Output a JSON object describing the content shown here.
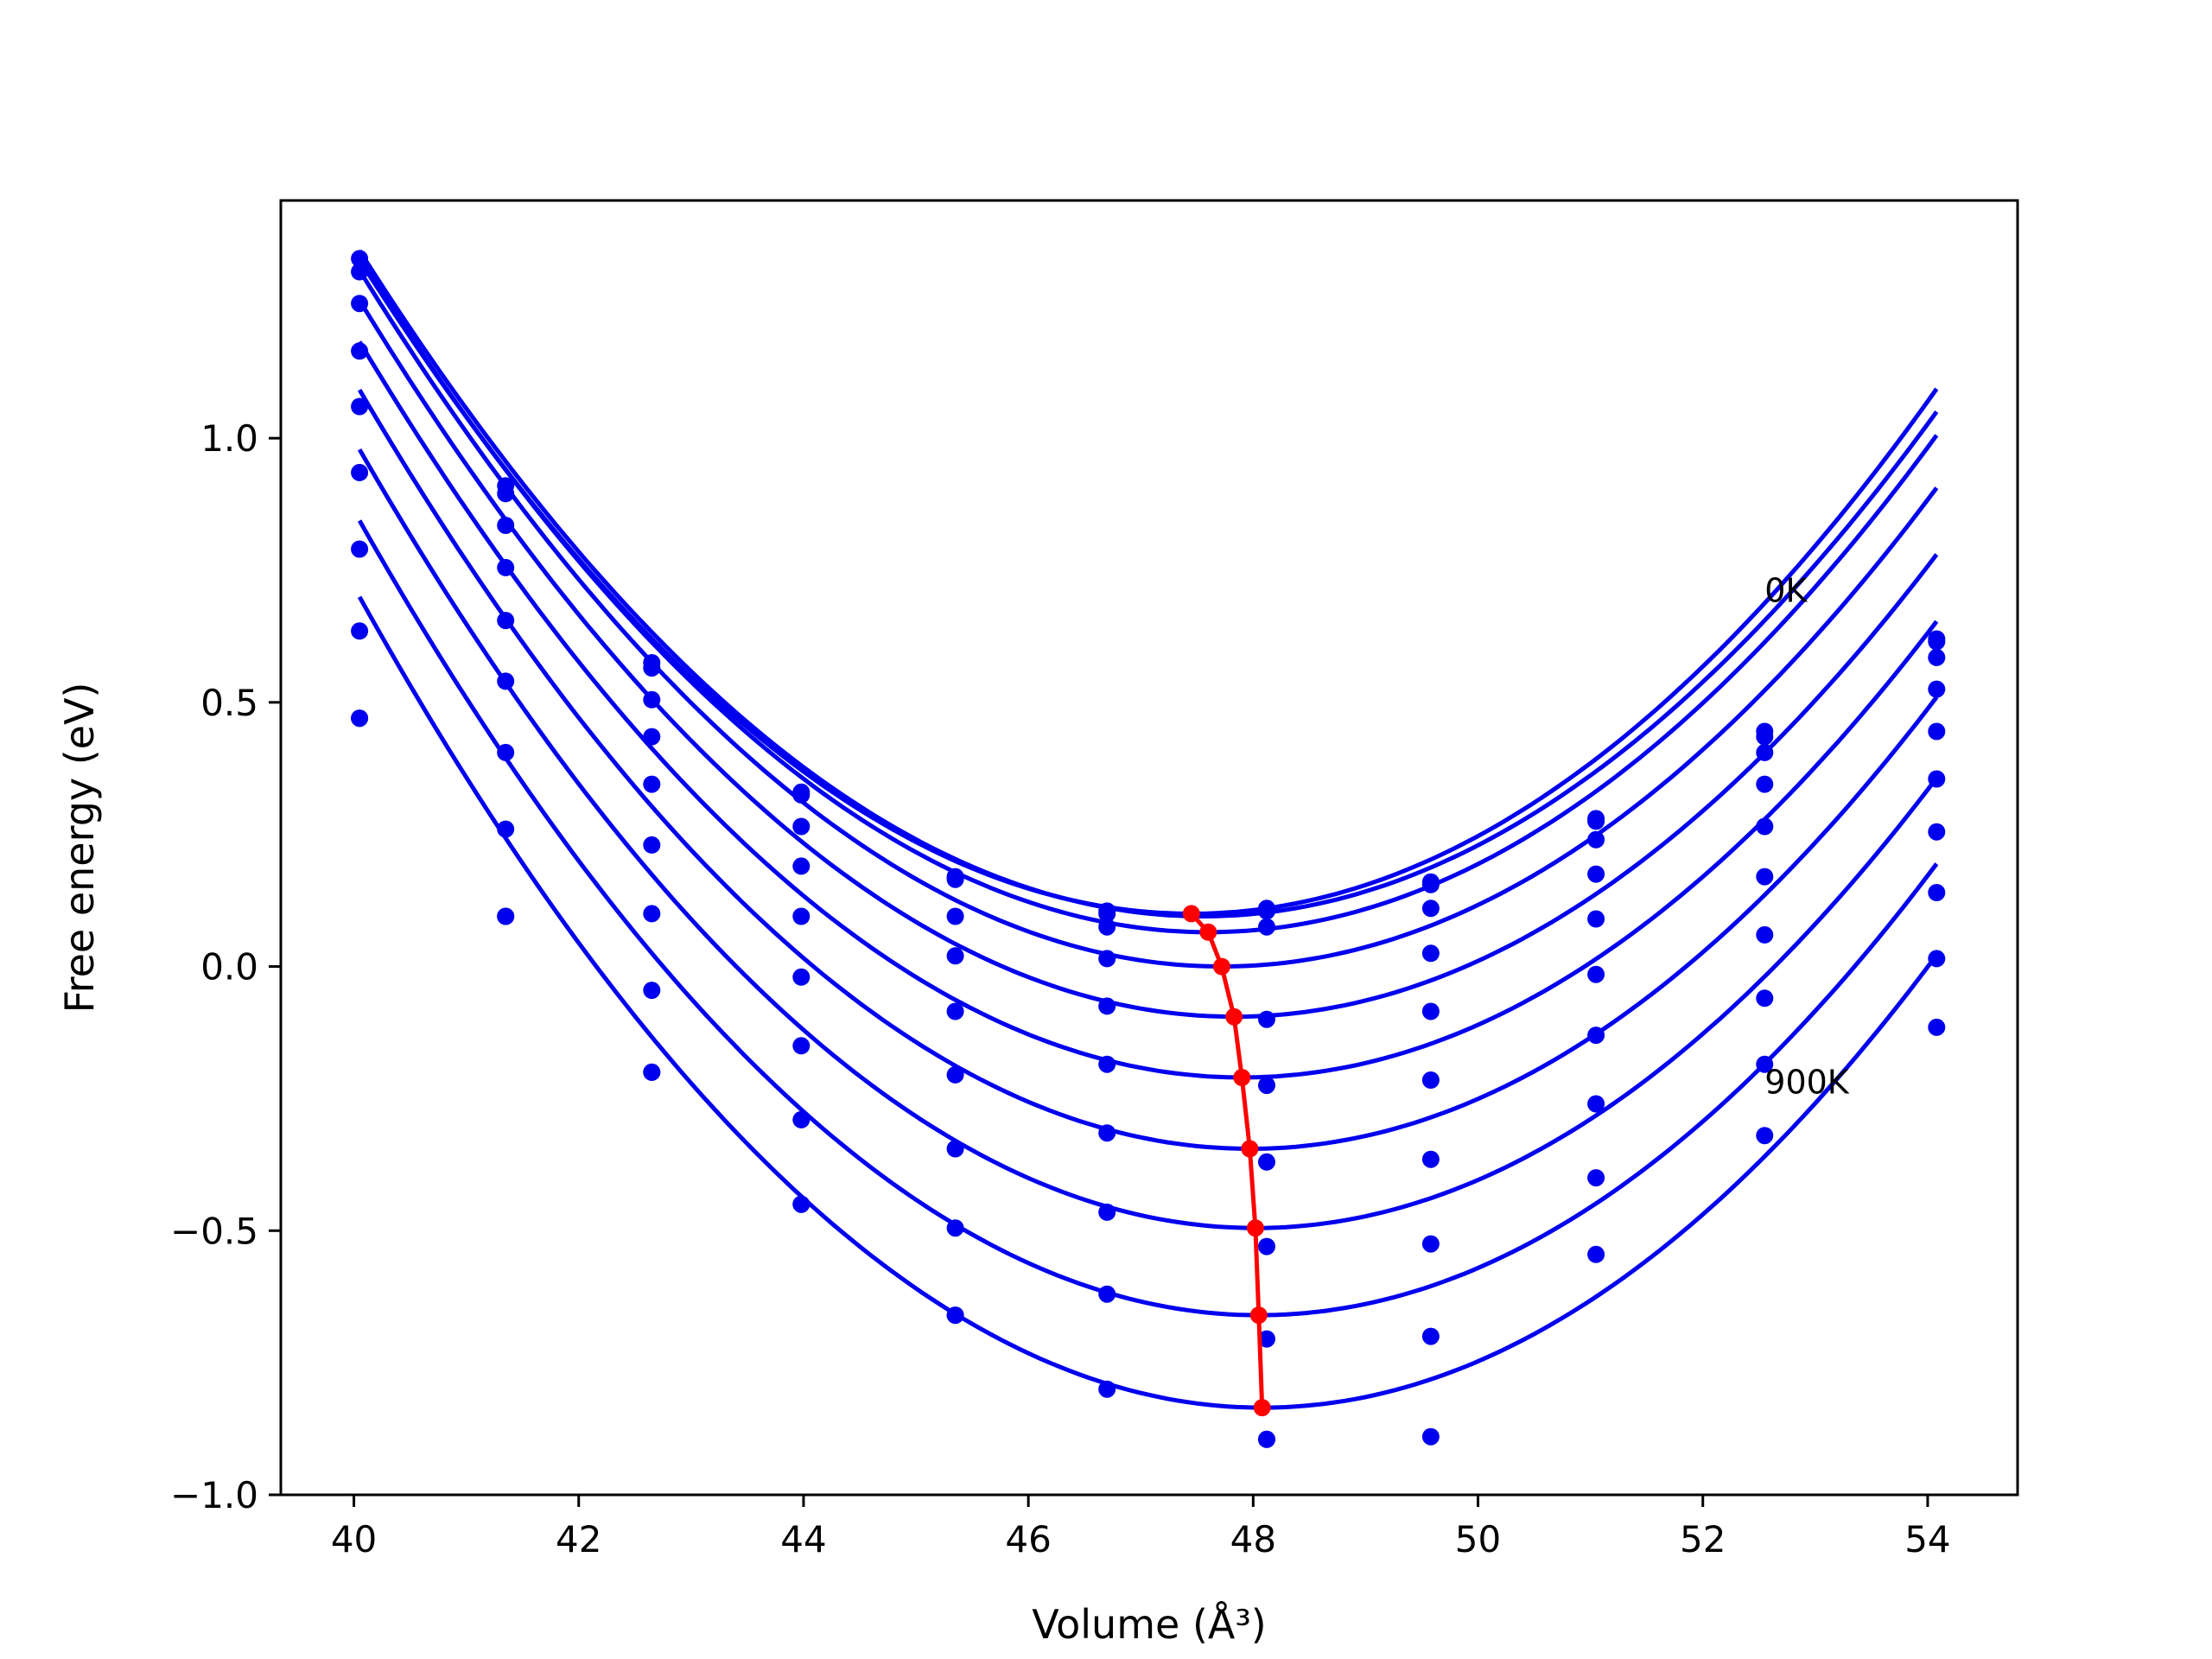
{
  "chart_data": {
    "type": "scatter",
    "title": "",
    "xlabel": "Volume (Å³)",
    "ylabel": "Free energy (eV)",
    "xlim": [
      39.35,
      54.8
    ],
    "ylim": [
      -1.0,
      1.45
    ],
    "xticks": [
      40,
      42,
      44,
      46,
      48,
      50,
      52,
      54
    ],
    "yticks": [
      -1.0,
      -0.5,
      0.0,
      0.5,
      1.0
    ],
    "xtick_labels": [
      "40",
      "42",
      "44",
      "46",
      "48",
      "50",
      "52",
      "54"
    ],
    "ytick_labels": [
      "−1.0",
      "−0.5",
      "0.0",
      "0.5",
      "1.0"
    ],
    "grid": false,
    "legend": "none",
    "annotations": [
      {
        "text": "0K",
        "x": 52.55,
        "y": 0.69
      },
      {
        "text": "900K",
        "x": 52.55,
        "y": -0.24
      }
    ],
    "colors": {
      "series": "#0000ee",
      "minimum_path": "#ff0000",
      "axes": "#000000"
    },
    "x": [
      40.05,
      41.35,
      42.65,
      43.98,
      45.35,
      46.7,
      48.12,
      49.58,
      51.05,
      52.55,
      54.08
    ],
    "series": [
      {
        "values": [
          1.34,
          0.91,
          0.575,
          0.33,
          0.17,
          0.105,
          0.11,
          0.16,
          0.28,
          0.445,
          0.62
        ]
      },
      {
        "values": [
          1.315,
          0.895,
          0.565,
          0.325,
          0.165,
          0.1,
          0.105,
          0.155,
          0.275,
          0.435,
          0.615
        ]
      },
      {
        "values": [
          1.255,
          0.835,
          0.505,
          0.265,
          0.095,
          0.075,
          0.075,
          0.11,
          0.24,
          0.405,
          0.585
        ]
      },
      {
        "values": [
          1.165,
          0.755,
          0.435,
          0.19,
          0.02,
          0.015,
          -0.1,
          0.025,
          0.175,
          0.345,
          0.525
        ]
      },
      {
        "values": [
          1.06,
          0.655,
          0.345,
          0.095,
          -0.085,
          -0.075,
          -0.225,
          -0.085,
          0.09,
          0.265,
          0.445
        ]
      },
      {
        "values": [
          0.935,
          0.54,
          0.23,
          -0.02,
          -0.205,
          -0.185,
          -0.37,
          -0.215,
          -0.015,
          0.17,
          0.355
        ]
      },
      {
        "values": [
          0.79,
          0.405,
          0.1,
          -0.15,
          -0.345,
          -0.315,
          -0.53,
          -0.365,
          -0.13,
          0.06,
          0.255
        ]
      },
      {
        "values": [
          0.635,
          0.26,
          -0.045,
          -0.29,
          -0.495,
          -0.465,
          -0.705,
          -0.525,
          -0.26,
          -0.06,
          0.14
        ]
      },
      {
        "values": [
          0.47,
          0.095,
          -0.2,
          -0.45,
          -0.66,
          -0.62,
          -0.895,
          -0.7,
          -0.4,
          -0.185,
          0.015
        ]
      },
      {
        "values": [
          0.47,
          0.095,
          -0.2,
          -0.45,
          -0.66,
          -0.8,
          -0.895,
          -0.89,
          -0.545,
          -0.32,
          -0.115
        ]
      }
    ],
    "fit_curves": [
      {
        "x_min": 40.05,
        "x_max": 54.08,
        "v0": 47.45,
        "e0": 0.1,
        "curvature": 0.0226
      },
      {
        "x_min": 40.05,
        "x_max": 54.08,
        "v0": 47.55,
        "e0": 0.095,
        "curvature": 0.0224
      },
      {
        "x_min": 40.05,
        "x_max": 54.08,
        "v0": 47.6,
        "e0": 0.065,
        "curvature": 0.0224
      },
      {
        "x_min": 40.05,
        "x_max": 54.08,
        "v0": 47.72,
        "e0": 0.0,
        "curvature": 0.0224
      },
      {
        "x_min": 40.05,
        "x_max": 54.08,
        "v0": 47.83,
        "e0": -0.095,
        "curvature": 0.0224
      },
      {
        "x_min": 40.05,
        "x_max": 54.08,
        "v0": 47.9,
        "e0": -0.21,
        "curvature": 0.0226
      },
      {
        "x_min": 40.05,
        "x_max": 54.08,
        "v0": 47.97,
        "e0": -0.345,
        "curvature": 0.0229
      },
      {
        "x_min": 40.05,
        "x_max": 54.08,
        "v0": 48.02,
        "e0": -0.495,
        "curvature": 0.0232
      },
      {
        "x_min": 40.05,
        "x_max": 54.08,
        "v0": 48.05,
        "e0": -0.66,
        "curvature": 0.0235
      },
      {
        "x_min": 40.05,
        "x_max": 54.08,
        "v0": 48.08,
        "e0": -0.835,
        "curvature": 0.0238
      }
    ],
    "minimum_path": {
      "x": [
        47.45,
        47.6,
        47.72,
        47.83,
        47.9,
        47.97,
        48.02,
        48.05,
        48.08
      ],
      "y": [
        0.1,
        0.065,
        0.0,
        -0.095,
        -0.21,
        -0.345,
        -0.495,
        -0.66,
        -0.835
      ]
    }
  }
}
